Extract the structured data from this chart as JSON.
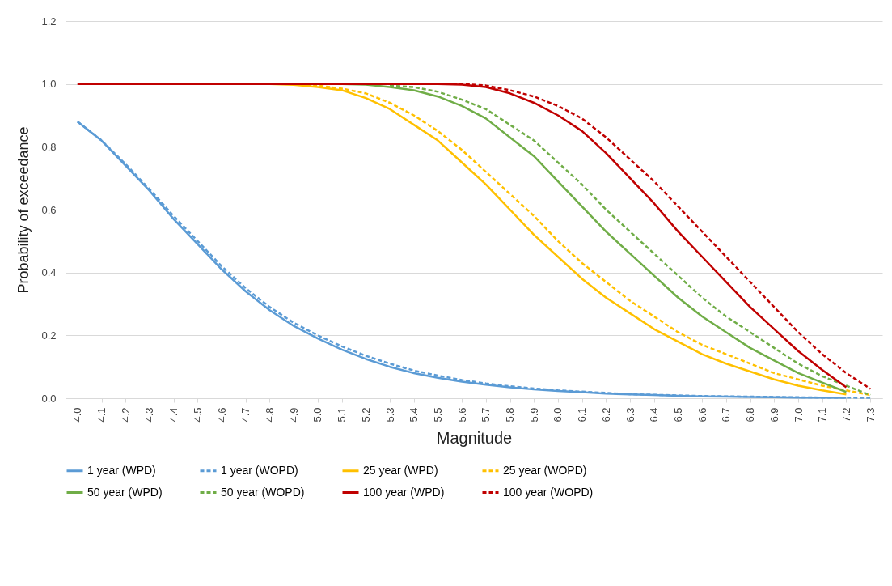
{
  "chart_data": {
    "type": "line",
    "xlabel": "Magnitude",
    "ylabel": "Probability of exceedance",
    "categories": [
      "4.0",
      "4.1",
      "4.2",
      "4.3",
      "4.4",
      "4.5",
      "4.6",
      "4.7",
      "4.8",
      "4.9",
      "5.0",
      "5.1",
      "5.2",
      "5.3",
      "5.4",
      "5.5",
      "5.6",
      "5.7",
      "5.8",
      "5.9",
      "6.0",
      "6.1",
      "6.2",
      "6.3",
      "6.4",
      "6.5",
      "6.6",
      "6.7",
      "6.8",
      "6.9",
      "7.0",
      "7.1",
      "7.2",
      "7.3"
    ],
    "ylim": [
      0,
      1.2
    ],
    "yticks": [
      {
        "value": 0,
        "label": "0.0"
      },
      0.2,
      0.4,
      0.6,
      0.8,
      {
        "value": 1,
        "label": "1.0"
      },
      1.2
    ],
    "grid": "y",
    "legend": "bottom",
    "marker": "none",
    "series": [
      {
        "name": "1 year (WPD)",
        "color": "#5b9bd5",
        "line_style": "solid",
        "values": [
          0.88,
          0.82,
          0.74,
          0.66,
          0.57,
          0.49,
          0.41,
          0.34,
          0.28,
          0.23,
          0.19,
          0.155,
          0.125,
          0.1,
          0.08,
          0.065,
          0.053,
          0.043,
          0.035,
          0.028,
          0.023,
          0.019,
          0.015,
          0.012,
          0.01,
          0.008,
          0.006,
          0.005,
          0.004,
          0.003,
          0.002,
          0.002,
          0.001,
          null
        ]
      },
      {
        "name": "1 year (WOPD)",
        "color": "#5b9bd5",
        "line_style": "dashed",
        "values": [
          0.88,
          0.82,
          0.745,
          0.665,
          0.58,
          0.5,
          0.42,
          0.35,
          0.29,
          0.24,
          0.2,
          0.165,
          0.135,
          0.11,
          0.088,
          0.072,
          0.058,
          0.047,
          0.038,
          0.031,
          0.025,
          0.021,
          0.017,
          0.013,
          0.011,
          0.009,
          0.007,
          0.006,
          0.005,
          0.004,
          0.003,
          0.002,
          0.002,
          0.001
        ]
      },
      {
        "name": "25 year (WPD)",
        "color": "#ffc000",
        "line_style": "solid",
        "values": [
          null,
          null,
          null,
          null,
          null,
          null,
          null,
          1,
          1,
          0.997,
          0.99,
          0.98,
          0.955,
          0.92,
          0.87,
          0.82,
          0.75,
          0.68,
          0.6,
          0.52,
          0.45,
          0.38,
          0.32,
          0.27,
          0.22,
          0.18,
          0.14,
          0.11,
          0.085,
          0.06,
          0.04,
          0.025,
          0.012,
          null
        ]
      },
      {
        "name": "25 year (WOPD)",
        "color": "#ffc000",
        "line_style": "dashed",
        "values": [
          null,
          null,
          null,
          null,
          null,
          null,
          null,
          null,
          null,
          0.999,
          0.995,
          0.985,
          0.97,
          0.94,
          0.9,
          0.85,
          0.79,
          0.72,
          0.65,
          0.58,
          0.5,
          0.43,
          0.37,
          0.31,
          0.26,
          0.21,
          0.17,
          0.14,
          0.11,
          0.08,
          0.06,
          0.04,
          0.025,
          0.01
        ]
      },
      {
        "name": "50 year (WPD)",
        "color": "#70ad47",
        "line_style": "solid",
        "values": [
          null,
          null,
          null,
          null,
          null,
          null,
          null,
          null,
          null,
          null,
          1,
          1,
          0.998,
          0.99,
          0.98,
          0.96,
          0.93,
          0.89,
          0.83,
          0.77,
          0.69,
          0.61,
          0.53,
          0.46,
          0.39,
          0.32,
          0.26,
          0.21,
          0.16,
          0.12,
          0.08,
          0.05,
          0.02,
          null
        ]
      },
      {
        "name": "50 year (WOPD)",
        "color": "#70ad47",
        "line_style": "dashed",
        "values": [
          null,
          null,
          null,
          null,
          null,
          null,
          null,
          null,
          null,
          null,
          null,
          null,
          null,
          0.995,
          0.99,
          0.975,
          0.95,
          0.92,
          0.87,
          0.82,
          0.75,
          0.68,
          0.6,
          0.53,
          0.46,
          0.39,
          0.32,
          0.26,
          0.21,
          0.16,
          0.11,
          0.07,
          0.04,
          0.01
        ]
      },
      {
        "name": "100 year (WPD)",
        "color": "#c00000",
        "line_style": "solid",
        "values": [
          1,
          1,
          1,
          1,
          1,
          1,
          1,
          1,
          1,
          1,
          1,
          1,
          1,
          1,
          1,
          1,
          0.998,
          0.99,
          0.97,
          0.94,
          0.9,
          0.85,
          0.78,
          0.7,
          0.62,
          0.53,
          0.45,
          0.37,
          0.29,
          0.22,
          0.15,
          0.09,
          0.035,
          null
        ]
      },
      {
        "name": "100 year (WOPD)",
        "color": "#c00000",
        "line_style": "dashed",
        "values": [
          1,
          1,
          1,
          1,
          1,
          1,
          1,
          1,
          1,
          1,
          1,
          1,
          1,
          1,
          1,
          1,
          1,
          0.995,
          0.98,
          0.96,
          0.93,
          0.89,
          0.83,
          0.76,
          0.69,
          0.61,
          0.53,
          0.45,
          0.37,
          0.29,
          0.21,
          0.14,
          0.08,
          0.03
        ]
      }
    ]
  }
}
